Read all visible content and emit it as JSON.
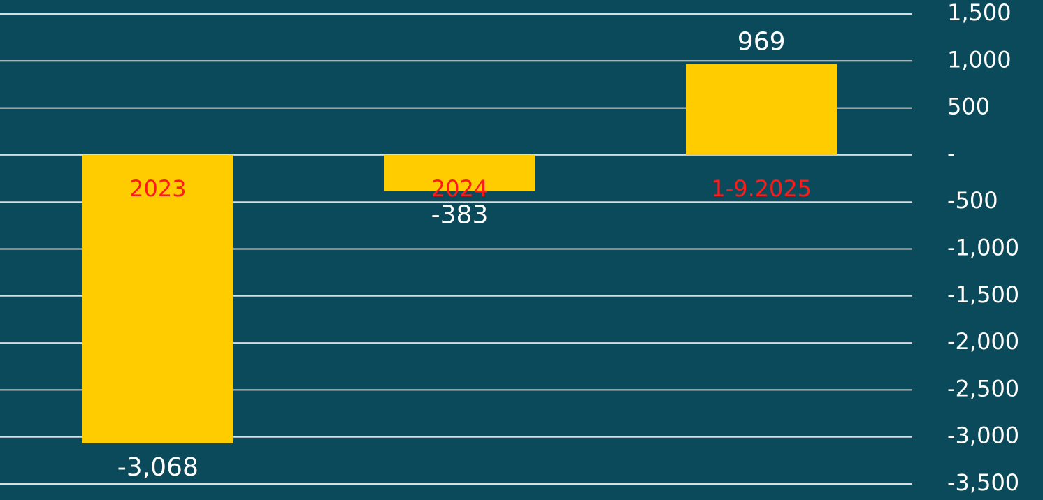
{
  "chart_data": {
    "type": "bar",
    "categories": [
      "2023",
      "2024",
      "1-9.2025"
    ],
    "values": [
      -3068,
      -383,
      969
    ],
    "value_labels": [
      "-3,068",
      "-383",
      "969"
    ],
    "color": "#ffcc00",
    "ylim": [
      -3500,
      1500
    ],
    "yticks": [
      {
        "value": -3500,
        "label": "-3,500"
      },
      {
        "value": -3000,
        "label": "-3,000"
      },
      {
        "value": -2500,
        "label": "-2,500"
      },
      {
        "value": -2000,
        "label": "-2,000"
      },
      {
        "value": -1500,
        "label": "-1,500"
      },
      {
        "value": -1000,
        "label": "-1,000"
      },
      -500,
      {
        "value": 0,
        "label": "-"
      },
      500,
      {
        "value": 1000,
        "label": "1,000"
      },
      {
        "value": 1500,
        "label": "1,500"
      }
    ],
    "grid": true
  }
}
